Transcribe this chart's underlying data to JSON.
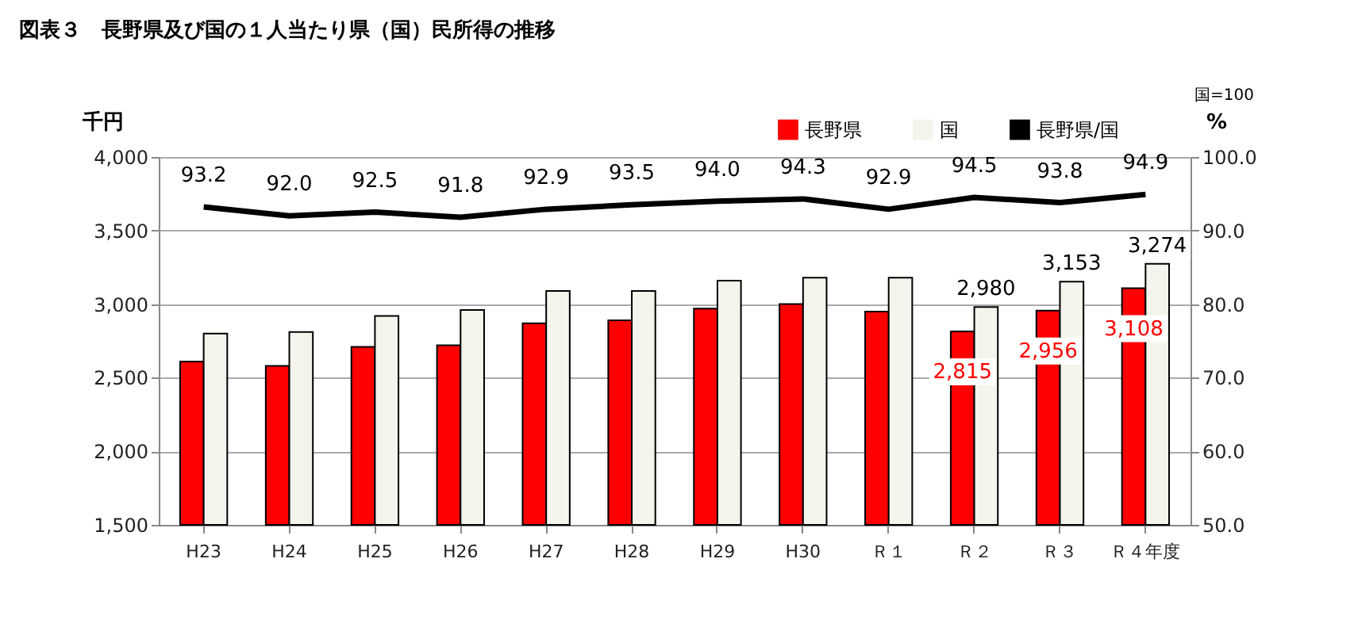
{
  "chart_data": {
    "type": "bar",
    "title": "図表３　長野県及び国の１人当たり県（国）民所得の推移",
    "categories": [
      "H23",
      "H24",
      "H25",
      "H26",
      "H27",
      "H28",
      "H29",
      "H30",
      "Ｒ１",
      "Ｒ２",
      "Ｒ３",
      "Ｒ４年度"
    ],
    "series": [
      {
        "name": "長野県",
        "color": "#ff0000",
        "values": [
          2610,
          2580,
          2710,
          2720,
          2870,
          2890,
          2970,
          3000,
          2950,
          2815,
          2956,
          3108
        ],
        "value_labels": [
          null,
          null,
          null,
          null,
          null,
          null,
          null,
          null,
          null,
          "2,815",
          "2,956",
          "3,108"
        ]
      },
      {
        "name": "国",
        "color": "#f4f4ec",
        "values": [
          2800,
          2810,
          2920,
          2960,
          3090,
          3090,
          3160,
          3180,
          3180,
          2980,
          3153,
          3274
        ],
        "value_labels": [
          null,
          null,
          null,
          null,
          null,
          null,
          null,
          null,
          null,
          "2,980",
          "3,153",
          "3,274"
        ]
      },
      {
        "name": "長野県/国",
        "type": "line",
        "axis": "y2",
        "color": "#000000",
        "values": [
          93.2,
          92.0,
          92.5,
          91.8,
          92.9,
          93.5,
          94.0,
          94.3,
          92.9,
          94.5,
          93.8,
          94.9
        ],
        "value_labels": [
          "93.2",
          "92.0",
          "92.5",
          "91.8",
          "92.9",
          "93.5",
          "94.0",
          "94.3",
          "92.9",
          "94.5",
          "93.8",
          "94.9"
        ]
      }
    ],
    "ylabel": "千円",
    "y2label": "%",
    "ylim": [
      1500,
      4000
    ],
    "yticks": [
      {
        "value": 1500,
        "label": "1,500"
      },
      {
        "value": 2000,
        "label": "2,000"
      },
      {
        "value": 2500,
        "label": "2,500"
      },
      {
        "value": 3000,
        "label": "3,000"
      },
      {
        "value": 3500,
        "label": "3,500"
      },
      {
        "value": 4000,
        "label": "4,000"
      }
    ],
    "y2lim": [
      50,
      100
    ],
    "y2ticks": [
      {
        "value": 50,
        "label": "50.0"
      },
      {
        "value": 60,
        "label": "60.0"
      },
      {
        "value": 70,
        "label": "70.0"
      },
      {
        "value": 80,
        "label": "80.0"
      },
      {
        "value": 90,
        "label": "90.0"
      },
      {
        "value": 100,
        "label": "100.0"
      }
    ],
    "annotations": [
      "国=100"
    ],
    "grid": "y",
    "legend": "top right"
  }
}
